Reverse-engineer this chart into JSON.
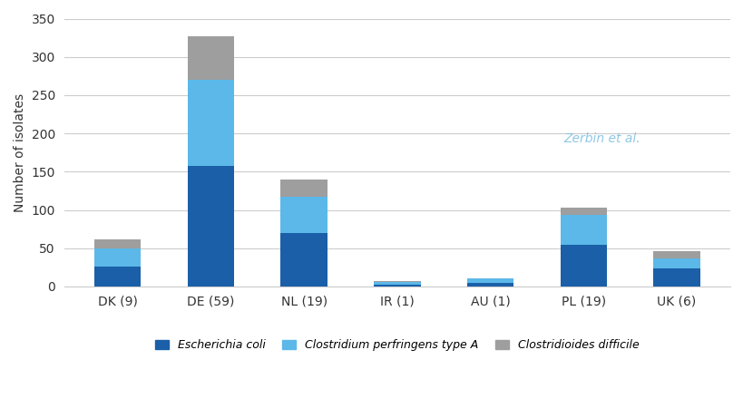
{
  "categories": [
    "DK (9)",
    "DE (59)",
    "NL (19)",
    "IR (1)",
    "AU (1)",
    "PL (19)",
    "UK (6)"
  ],
  "ecoli": [
    26,
    158,
    70,
    2,
    5,
    55,
    24
  ],
  "clostridium": [
    24,
    112,
    47,
    4,
    6,
    38,
    13
  ],
  "cdifficile": [
    12,
    57,
    23,
    1,
    0,
    10,
    9
  ],
  "color_ecoli": "#1a5fa8",
  "color_clostridium": "#5bb8e8",
  "color_cdifficile": "#9e9e9e",
  "ylabel": "Number of isolates",
  "ylim": [
    0,
    350
  ],
  "yticks": [
    0,
    50,
    100,
    150,
    200,
    250,
    300,
    350
  ],
  "legend_ecoli": "Escherichia coli",
  "legend_clostridium": "Clostridium perfringens type A",
  "legend_cdifficile": "Clostridioides difficile",
  "watermark_text": "Zerbin et al.",
  "background_color": "#ffffff",
  "grid_color": "#cccccc"
}
